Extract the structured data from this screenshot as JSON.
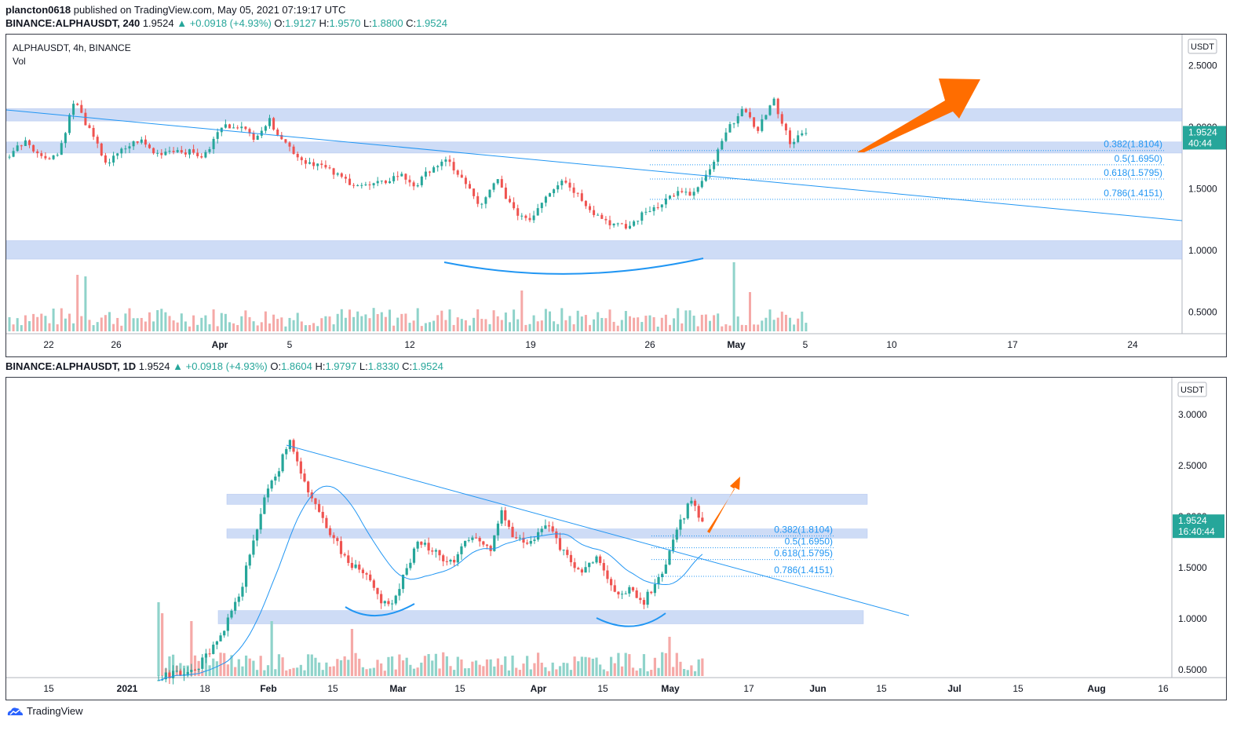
{
  "header": {
    "author": "plancton0618",
    "published_text": "published on TradingView.com, May 05, 2021 07:19:17 UTC",
    "ticker_line": "BINANCE:ALPHAUSDT, 240",
    "last": "1.9524",
    "change": "+0.0918 (+4.93%)",
    "o_label": "O:",
    "o": "1.9127",
    "h_label": "H:",
    "h": "1.9570",
    "l_label": "L:",
    "l": "1.8800",
    "c_label": "C:",
    "c": "1.9524"
  },
  "panel1": {
    "title": "ALPHAUSDT, 4h, BINANCE",
    "vol_label": "Vol",
    "currency": "USDT",
    "price_badge": "1.9524",
    "timer_badge": "40:44"
  },
  "header2": {
    "ticker_line": "BINANCE:ALPHAUSDT, 1D",
    "last": "1.9524",
    "change": "+0.0918 (+4.93%)",
    "o_label": "O:",
    "o": "1.8604",
    "h_label": "H:",
    "h": "1.9797",
    "l_label": "L:",
    "l": "1.8330",
    "c_label": "C:",
    "c": "1.9524"
  },
  "panel2": {
    "currency": "USDT",
    "price_badge": "1.9524",
    "timer_badge": "16:40:44"
  },
  "footer": {
    "brand": "TradingView"
  },
  "colors": {
    "up": "#26a69a",
    "down": "#ef5350",
    "zone": "#c3d4f5",
    "line": "#2196f3",
    "arrow": "#ff6d00"
  },
  "chart_data": [
    {
      "type": "candlestick",
      "timeframe": "4h",
      "x_ticks": [
        "22",
        "26",
        "Apr",
        "5",
        "12",
        "19",
        "26",
        "May",
        "5",
        "10",
        "17",
        "24"
      ],
      "y_ticks": [
        2.5,
        2.0,
        1.5,
        1.0,
        0.5
      ],
      "y_tick_labels": [
        "2.5000",
        "2.0000",
        "1.5000",
        "1.0000",
        "0.5000"
      ],
      "ylim": [
        0.3,
        2.7
      ],
      "support_resistance_zones": [
        [
          2.05,
          2.15
        ],
        [
          1.79,
          1.88
        ],
        [
          0.93,
          1.08
        ]
      ],
      "fib_levels": [
        {
          "label": "0.382(1.8104)",
          "value": 1.8104
        },
        {
          "label": "0.5(1.6950)",
          "value": 1.695
        },
        {
          "label": "0.618(1.5795)",
          "value": 1.5795
        },
        {
          "label": "0.786(1.4151)",
          "value": 1.4151
        }
      ],
      "price_path": [
        1.78,
        1.9,
        1.75,
        1.78,
        2.22,
        1.95,
        1.7,
        1.82,
        1.9,
        1.78,
        1.82,
        1.8,
        1.76,
        2.0,
        2.02,
        1.92,
        2.05,
        1.87,
        1.73,
        1.7,
        1.62,
        1.55,
        1.52,
        1.55,
        1.62,
        1.52,
        1.68,
        1.72,
        1.55,
        1.35,
        1.58,
        1.32,
        1.25,
        1.45,
        1.58,
        1.45,
        1.3,
        1.22,
        1.18,
        1.3,
        1.38,
        1.47,
        1.45,
        1.62,
        1.93,
        2.15,
        1.98,
        2.22,
        1.88,
        1.9524
      ],
      "last_price": 1.9524
    },
    {
      "type": "candlestick",
      "timeframe": "1D",
      "x_ticks": [
        "15",
        "2021",
        "18",
        "Feb",
        "15",
        "Mar",
        "15",
        "Apr",
        "15",
        "May",
        "17",
        "Jun",
        "15",
        "Jul",
        "15",
        "Aug",
        "16"
      ],
      "y_ticks": [
        3.0,
        2.5,
        2.0,
        1.5,
        1.0,
        0.5
      ],
      "y_tick_labels": [
        "3.0000",
        "2.5000",
        "2.0000",
        "1.5000",
        "1.0000",
        "0.5000"
      ],
      "ylim": [
        0.4,
        3.3
      ],
      "support_resistance_zones": [
        [
          2.12,
          2.22
        ],
        [
          1.79,
          1.88
        ],
        [
          0.95,
          1.08
        ]
      ],
      "fib_levels": [
        {
          "label": "0.382(1.8104)",
          "value": 1.8104
        },
        {
          "label": "0.5(1.6950)",
          "value": 1.695
        },
        {
          "label": "0.618(1.5795)",
          "value": 1.5795
        },
        {
          "label": "0.786(1.4151)",
          "value": 1.4151
        }
      ],
      "price_path": [
        0.42,
        0.45,
        0.48,
        0.5,
        0.62,
        0.8,
        1.0,
        1.3,
        1.75,
        2.2,
        2.4,
        2.75,
        2.45,
        2.15,
        1.95,
        1.75,
        1.55,
        1.5,
        1.35,
        1.15,
        1.2,
        1.5,
        1.75,
        1.7,
        1.6,
        1.55,
        1.75,
        1.8,
        1.65,
        2.05,
        1.8,
        1.75,
        1.8,
        1.95,
        1.7,
        1.55,
        1.45,
        1.6,
        1.35,
        1.2,
        1.3,
        1.15,
        1.35,
        1.55,
        1.9,
        2.15,
        1.9524
      ],
      "last_price": 1.9524
    }
  ]
}
